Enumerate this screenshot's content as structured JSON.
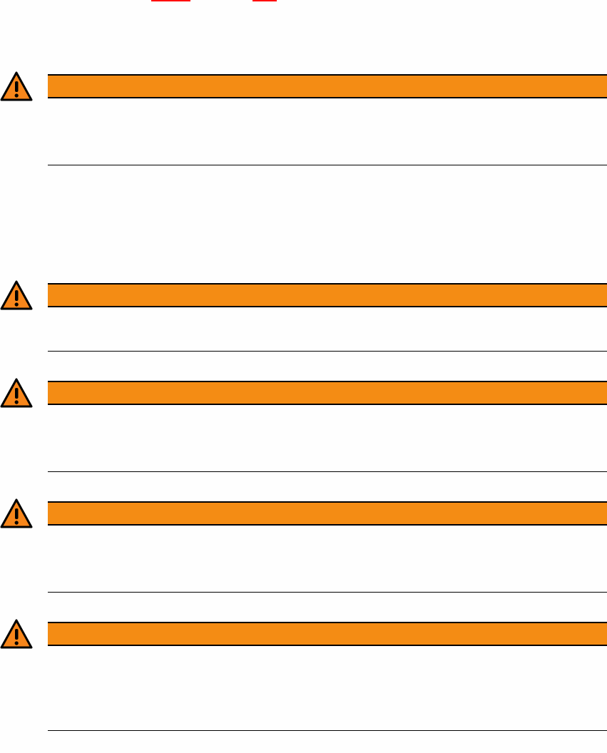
{
  "colors": {
    "header_bar": "#f48c14",
    "icon_fill": "#f7861b",
    "link_underline": "#ff0000",
    "rule": "#000000"
  },
  "links": [
    {
      "icon": "none"
    },
    {
      "icon": "none"
    }
  ],
  "warnings": [
    {
      "icon": "warning-triangle-icon"
    },
    {
      "icon": "warning-triangle-icon"
    },
    {
      "icon": "warning-triangle-icon"
    },
    {
      "icon": "warning-triangle-icon"
    },
    {
      "icon": "warning-triangle-icon"
    }
  ]
}
